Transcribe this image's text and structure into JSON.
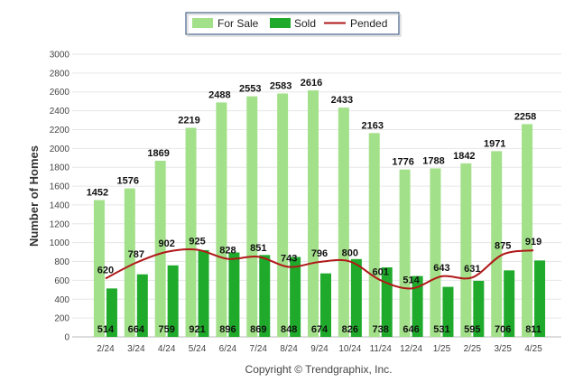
{
  "chart_data": {
    "type": "bar",
    "categories": [
      "2/24",
      "3/24",
      "4/24",
      "5/24",
      "6/24",
      "7/24",
      "8/24",
      "9/24",
      "10/24",
      "11/24",
      "12/24",
      "1/25",
      "2/25",
      "3/25",
      "4/25"
    ],
    "series": [
      {
        "name": "For Sale",
        "type": "bar",
        "color": "#a3e08a",
        "values": [
          1452,
          1576,
          1869,
          2219,
          2488,
          2553,
          2583,
          2616,
          2433,
          2163,
          1776,
          1788,
          1842,
          1971,
          2258
        ]
      },
      {
        "name": "Sold",
        "type": "bar",
        "color": "#1faa2b",
        "values": [
          514,
          664,
          759,
          921,
          896,
          869,
          848,
          674,
          826,
          738,
          646,
          531,
          595,
          706,
          811
        ]
      },
      {
        "name": "Pended",
        "type": "line",
        "color": "#b01818",
        "values": [
          620,
          787,
          902,
          925,
          828,
          851,
          743,
          796,
          800,
          601,
          514,
          643,
          631,
          875,
          919
        ]
      }
    ],
    "title": "",
    "xlabel": "",
    "ylabel": "Number of Homes",
    "ylim": [
      0,
      3000
    ],
    "yticks": [
      "0",
      "200",
      "400",
      "600",
      "800",
      "1000",
      "1200",
      "1400",
      "1600",
      "1800",
      "2000",
      "2200",
      "2400",
      "2600",
      "2800",
      "3000"
    ],
    "grid": true,
    "legend_position": "top-center"
  },
  "credit": "Copyright © Trendgraphix, Inc."
}
